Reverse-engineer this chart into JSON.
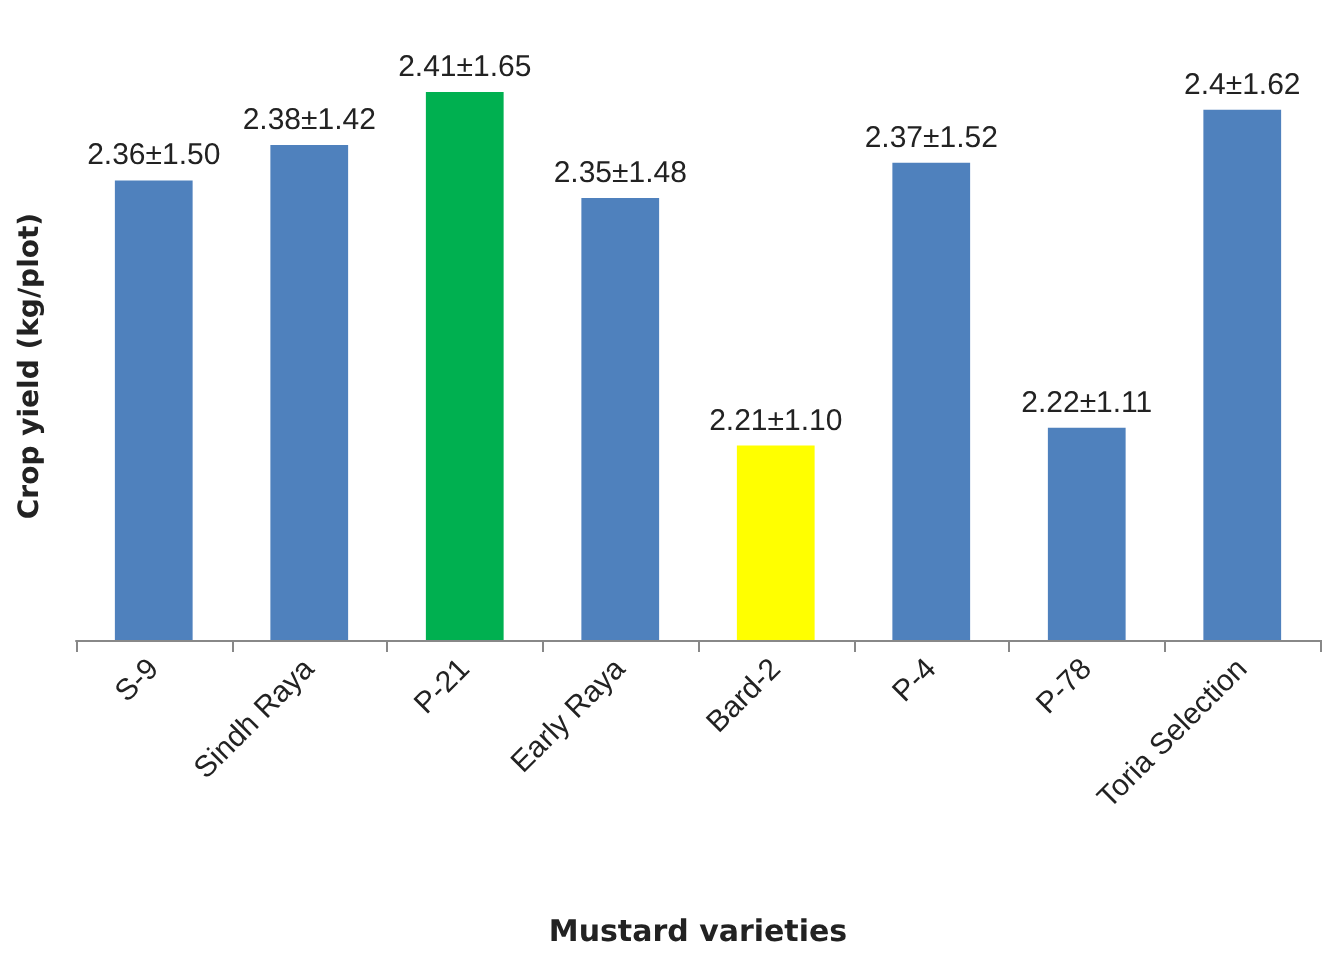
{
  "chart_data": {
    "type": "bar",
    "xlabel": "Mustard varieties",
    "ylabel": "Crop yield (kg/plot)",
    "categories": [
      "S-9",
      "Sindh Raya",
      "P-21",
      "Early Raya",
      "Bard-2",
      "P-4",
      "P-78",
      "Toria Selection"
    ],
    "values": [
      2.36,
      2.38,
      2.41,
      2.35,
      2.21,
      2.37,
      2.22,
      2.4
    ],
    "value_labels": [
      "2.36±1.50",
      "2.38±1.42",
      "2.41±1.65",
      "2.35±1.48",
      "2.21±1.10",
      "2.37±1.52",
      "2.22±1.11",
      "2.4±1.62"
    ],
    "colors": [
      "#4f81bd",
      "#4f81bd",
      "#00b050",
      "#4f81bd",
      "#ffff00",
      "#4f81bd",
      "#4f81bd",
      "#4f81bd"
    ],
    "ylim": [
      2.1,
      2.41
    ],
    "tick_labels": "x",
    "grid": false
  }
}
